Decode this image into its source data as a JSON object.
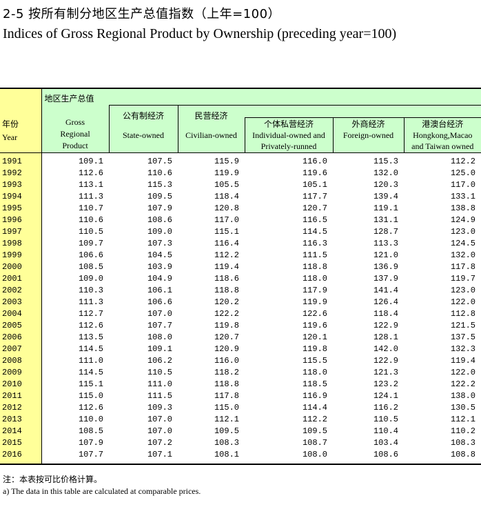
{
  "title_cn": "2-5 按所有制分地区生产总值指数（上年=100）",
  "title_en": "Indices of Gross Regional Product by Ownership (preceding year=100)",
  "headers": {
    "year_cn": "年份",
    "year_en": "Year",
    "grp_cn": "地区生产总值",
    "grp_en1": "Gross",
    "grp_en2": "Regional",
    "grp_en3": "Product",
    "state_cn": "公有制经济",
    "state_en": "State-owned",
    "civ_cn": "民营经济",
    "civ_en": "Civilian-owned",
    "ind_cn": "个体私营经济",
    "ind_en1": "Individual-owned and",
    "ind_en2": "Privately-runned",
    "for_cn": "外商经济",
    "for_en": "Foreign-owned",
    "hk_cn": "港澳台经济",
    "hk_en1": "Hongkong,Macao",
    "hk_en2": "and Taiwan owned"
  },
  "rows": [
    [
      "1991",
      "109.1",
      "107.5",
      "115.9",
      "116.0",
      "115.3",
      "112.2"
    ],
    [
      "1992",
      "112.6",
      "110.6",
      "119.9",
      "119.6",
      "132.0",
      "125.0"
    ],
    [
      "1993",
      "113.1",
      "115.3",
      "105.5",
      "105.1",
      "120.3",
      "117.0"
    ],
    [
      "1994",
      "111.3",
      "109.5",
      "118.4",
      "117.7",
      "139.4",
      "133.1"
    ],
    [
      "1995",
      "110.7",
      "107.9",
      "120.8",
      "120.7",
      "119.1",
      "138.8"
    ],
    [
      "1996",
      "110.6",
      "108.6",
      "117.0",
      "116.5",
      "131.1",
      "124.9"
    ],
    [
      "1997",
      "110.5",
      "109.0",
      "115.1",
      "114.5",
      "128.7",
      "123.0"
    ],
    [
      "1998",
      "109.7",
      "107.3",
      "116.4",
      "116.3",
      "113.3",
      "124.5"
    ],
    [
      "1999",
      "106.6",
      "104.5",
      "112.2",
      "111.5",
      "121.0",
      "132.0"
    ],
    [
      "2000",
      "108.5",
      "103.9",
      "119.4",
      "118.8",
      "136.9",
      "117.8"
    ],
    [
      "2001",
      "109.0",
      "104.9",
      "118.6",
      "118.0",
      "137.9",
      "119.7"
    ],
    [
      "2002",
      "110.3",
      "106.1",
      "118.8",
      "117.9",
      "141.4",
      "123.0"
    ],
    [
      "2003",
      "111.3",
      "106.6",
      "120.2",
      "119.9",
      "126.4",
      "122.0"
    ],
    [
      "2004",
      "112.7",
      "107.0",
      "122.2",
      "122.6",
      "118.4",
      "112.8"
    ],
    [
      "2005",
      "112.6",
      "107.7",
      "119.8",
      "119.6",
      "122.9",
      "121.5"
    ],
    [
      "2006",
      "113.5",
      "108.0",
      "120.7",
      "120.1",
      "128.1",
      "137.5"
    ],
    [
      "2007",
      "114.5",
      "109.1",
      "120.9",
      "119.8",
      "142.0",
      "132.3"
    ],
    [
      "2008",
      "111.0",
      "106.2",
      "116.0",
      "115.5",
      "122.9",
      "119.4"
    ],
    [
      "2009",
      "114.5",
      "110.5",
      "118.2",
      "118.0",
      "121.3",
      "122.0"
    ],
    [
      "2010",
      "115.1",
      "111.0",
      "118.8",
      "118.5",
      "123.2",
      "122.2"
    ],
    [
      "2011",
      "115.0",
      "111.5",
      "117.8",
      "116.9",
      "124.1",
      "138.0"
    ],
    [
      "2012",
      "112.6",
      "109.3",
      "115.0",
      "114.4",
      "116.2",
      "130.5"
    ],
    [
      "2013",
      "110.0",
      "107.0",
      "112.1",
      "112.2",
      "110.5",
      "112.1"
    ],
    [
      "2014",
      "108.5",
      "107.0",
      "109.5",
      "109.5",
      "110.4",
      "110.2"
    ],
    [
      "2015",
      "107.9",
      "107.2",
      "108.3",
      "108.7",
      "103.4",
      "108.3"
    ],
    [
      "2016",
      "107.7",
      "107.1",
      "108.1",
      "108.0",
      "108.6",
      "108.8"
    ]
  ],
  "note_cn": "注：本表按可比价格计算。",
  "note_en": "a) The data in this table are calculated at comparable prices."
}
